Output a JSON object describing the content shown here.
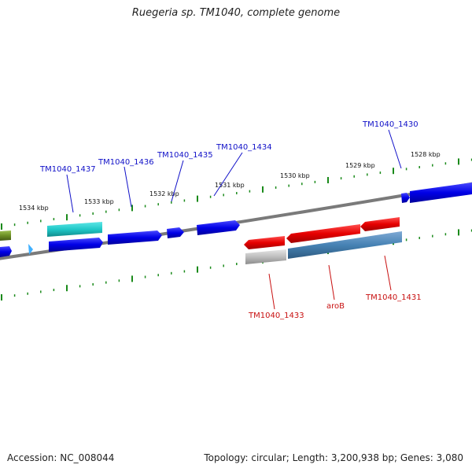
{
  "title": "Ruegeria sp. TM1040, complete genome",
  "footer": {
    "accession": "Accession: NC_008044",
    "summary": "Topology: circular; Length: 3,200,938 bp; Genes: 3,080"
  },
  "ticks": [
    {
      "label": "1534 kbp",
      "kbp": 1534
    },
    {
      "label": "1533 kbp",
      "kbp": 1533
    },
    {
      "label": "1532 kbp",
      "kbp": 1532
    },
    {
      "label": "1531 kbp",
      "kbp": 1531
    },
    {
      "label": "1530 kbp",
      "kbp": 1530
    },
    {
      "label": "1529 kbp",
      "kbp": 1529
    },
    {
      "label": "1528 kbp",
      "kbp": 1528
    }
  ],
  "gene_labels": {
    "forward": [
      "TM1040_1437",
      "TM1040_1436",
      "TM1040_1435",
      "TM1040_1434",
      "TM1040_1430"
    ],
    "reverse": [
      "TM1040_1433",
      "aroB",
      "TM1040_1431"
    ]
  },
  "colors": {
    "forward_cds": "#0000e6",
    "reverse_cds": "#e60000",
    "teal_feature": "#20c8c8",
    "steel_feature": "#4682b4",
    "gray_feature": "#bdbdbd",
    "olive_feature": "#6b8e23",
    "light_blue_feature": "#40b0ff",
    "backbone": "#7a7a7a",
    "tick_marks": "#1a8a1a"
  }
}
